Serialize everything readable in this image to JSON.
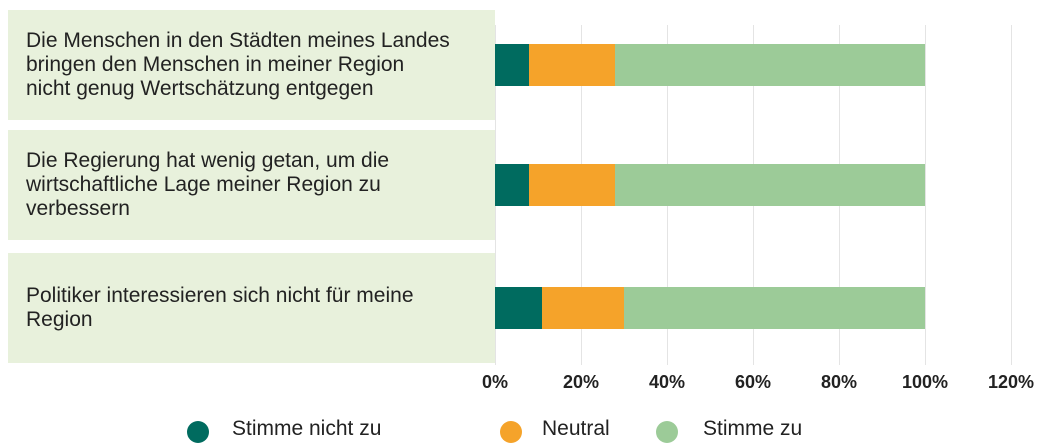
{
  "chart_data": {
    "type": "bar",
    "orientation": "horizontal",
    "stacked": true,
    "categories": [
      "Die Menschen in den Städten meines Landes bringen den Menschen in meiner Region nicht genug Wertschätzung entgegen",
      "Die Regierung hat wenig getan, um die wirtschaftliche Lage meiner Region zu verbessern",
      "Politiker interessieren sich nicht für meine Region"
    ],
    "series": [
      {
        "name": "Stimme nicht zu",
        "color": "#006b5f",
        "values": [
          8,
          8,
          11
        ]
      },
      {
        "name": "Neutral",
        "color": "#f5a32a",
        "values": [
          20,
          20,
          19
        ]
      },
      {
        "name": "Stimme zu",
        "color": "#9ccb98",
        "values": [
          72,
          72,
          70
        ]
      }
    ],
    "xlim": [
      0,
      120
    ],
    "xticks": [
      {
        "value": 0,
        "label": "0%"
      },
      {
        "value": 20,
        "label": "20%"
      },
      {
        "value": 40,
        "label": "40%"
      },
      {
        "value": 60,
        "label": "60%"
      },
      {
        "value": 80,
        "label": "80%"
      },
      {
        "value": 100,
        "label": "100%"
      },
      {
        "value": 120,
        "label": "120%"
      }
    ],
    "grid": true,
    "legend": "bottom"
  }
}
